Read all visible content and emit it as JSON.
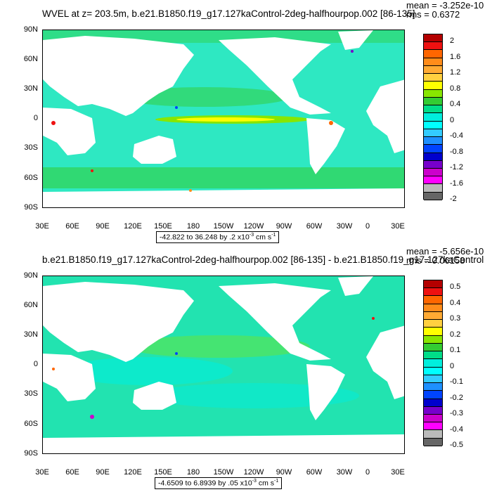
{
  "top": {
    "title": "WVEL at z= 203.5m, b.e21.B1850.f19_g17.127kaControl-2deg-halfhourpop.002 [86-135]",
    "mean": "mean = -3.252e-10",
    "rms": "rms = 0.6372",
    "range_label": "-42.822 to 36.248 by .2 x10",
    "range_exp": "-3",
    "range_unit": " cm s",
    "range_unit_exp": "-1",
    "colorbar_labels": [
      "2",
      "1.6",
      "1.2",
      "0.8",
      "0.4",
      "0",
      "-0.4",
      "-0.8",
      "-1.2",
      "-1.6",
      "-2"
    ]
  },
  "bottom": {
    "title": "b.e21.B1850.f19_g17.127kaControl-2deg-halfhourpop.002 [86-135] - b.e21.B1850.f19_g17.127kaControl",
    "mean": "mean = -5.656e-10",
    "rms": "rms = 0.06158",
    "range_label": "-4.6509 to 6.8939 by .05 x10",
    "range_exp": "-3",
    "range_unit": " cm s",
    "range_unit_exp": "-1",
    "colorbar_labels": [
      "0.5",
      "0.4",
      "0.3",
      "0.2",
      "0.1",
      "0",
      "-0.1",
      "-0.2",
      "-0.3",
      "-0.4",
      "-0.5"
    ]
  },
  "axes": {
    "lat_labels": [
      "90N",
      "60N",
      "30N",
      "0",
      "30S",
      "60S",
      "90S"
    ],
    "lon_labels": [
      "30E",
      "60E",
      "90E",
      "120E",
      "150E",
      "180",
      "150W",
      "120W",
      "90W",
      "60W",
      "30W",
      "0",
      "30E"
    ]
  },
  "colors": {
    "palette": [
      "#B40000",
      "#EE1111",
      "#FF6600",
      "#FF8C1A",
      "#FFAA33",
      "#FFD040",
      "#FFFF00",
      "#88E600",
      "#33CC33",
      "#00DD88",
      "#00EEDD",
      "#00FFFF",
      "#33CCFF",
      "#1E90FF",
      "#0044FF",
      "#0000CD",
      "#7700CC",
      "#CC00CC",
      "#FF00FF",
      "#BBBBBB",
      "#666666"
    ],
    "ocean_top": "#2EE8C2",
    "ocean_bottom": "#22E3B0",
    "land": "#FFFFFF"
  }
}
